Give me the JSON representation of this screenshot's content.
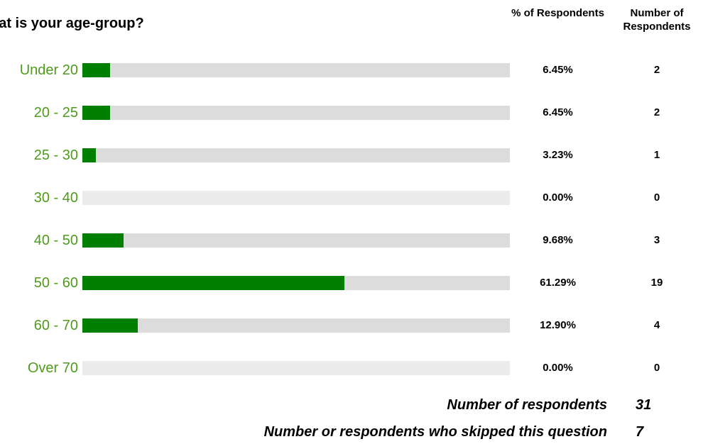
{
  "chart_data": {
    "type": "bar",
    "title": "hat is your age-group?",
    "column_headers": {
      "percent": "% of Respondents",
      "count": "Number of Respondents"
    },
    "categories": [
      "Under 20",
      "20 - 25",
      "25 - 30",
      "30 - 40",
      "40 - 50",
      "50 - 60",
      "60 - 70",
      "Over 70"
    ],
    "values": [
      6.45,
      6.45,
      3.23,
      0.0,
      9.68,
      61.29,
      12.9,
      0.0
    ],
    "percent_labels": [
      "6.45%",
      "6.45%",
      "3.23%",
      "0.00%",
      "9.68%",
      "61.29%",
      "12.90%",
      "0.00%"
    ],
    "counts": [
      "2",
      "2",
      "1",
      "0",
      "3",
      "19",
      "4",
      "0"
    ],
    "ylim": [
      0,
      100
    ],
    "bar_color": "#007f00",
    "track_color": "#dcdcdc",
    "label_color": "#4f9a1d"
  },
  "summary": {
    "respondents_label": "Number of respondents",
    "respondents_value": "31",
    "skipped_label": "Number or respondents who skipped this question",
    "skipped_value": "7"
  }
}
